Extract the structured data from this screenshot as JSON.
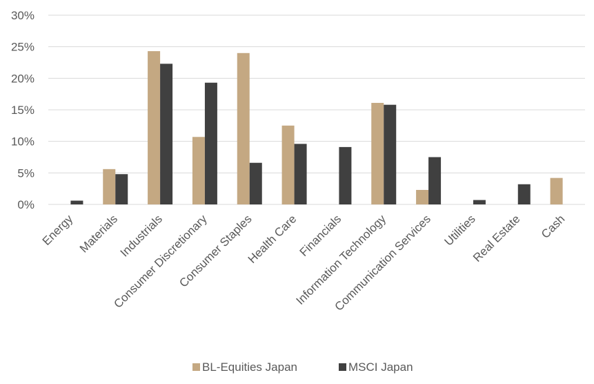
{
  "chart_data": {
    "type": "bar",
    "categories": [
      "Energy",
      "Materials",
      "Industrials",
      "Consumer Discretionary",
      "Consumer Staples",
      "Health Care",
      "Financials",
      "Information Technology",
      "Communication Services",
      "Utilities",
      "Real Estate",
      "Cash"
    ],
    "series": [
      {
        "name": "BL-Equities Japan",
        "color": "#c4a882",
        "values": [
          0,
          5.6,
          24.3,
          10.7,
          24.0,
          12.5,
          0,
          16.1,
          2.3,
          0,
          0,
          4.2
        ]
      },
      {
        "name": "MSCI Japan",
        "color": "#404040",
        "values": [
          0.6,
          4.8,
          22.3,
          19.3,
          6.6,
          9.6,
          9.1,
          15.8,
          7.5,
          0.7,
          3.2,
          0
        ]
      }
    ],
    "yticks": [
      "0%",
      "5%",
      "10%",
      "15%",
      "20%",
      "25%",
      "30%"
    ],
    "ylim": [
      0,
      30
    ],
    "grid": true,
    "legend_position": "bottom"
  }
}
